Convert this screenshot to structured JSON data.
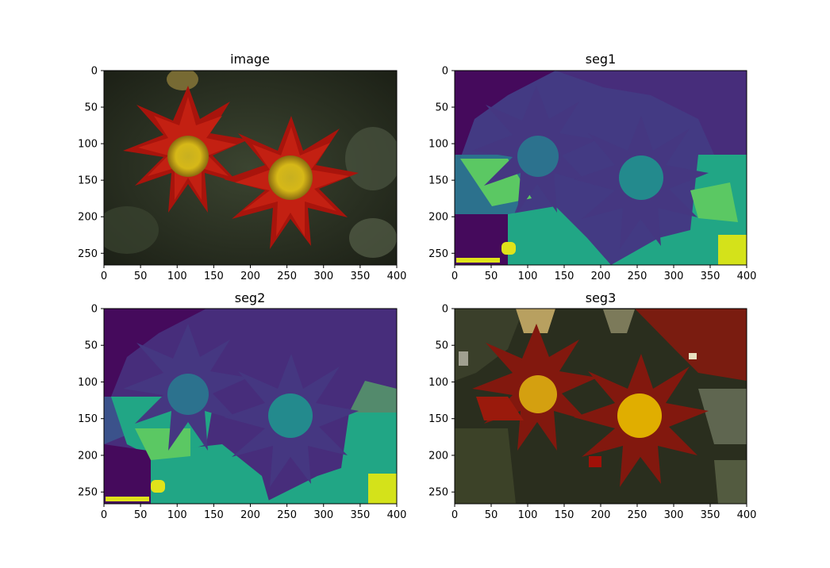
{
  "figure": {
    "panels": [
      {
        "id": "image",
        "title": "image",
        "x_ticks": [
          "0",
          "50",
          "100",
          "150",
          "200",
          "250",
          "300",
          "350",
          "400"
        ],
        "y_ticks": [
          "0",
          "50",
          "100",
          "150",
          "200",
          "250"
        ],
        "style": "photo"
      },
      {
        "id": "seg1",
        "title": "seg1",
        "x_ticks": [
          "0",
          "50",
          "100",
          "150",
          "200",
          "250",
          "300",
          "350",
          "400"
        ],
        "y_ticks": [
          "0",
          "50",
          "100",
          "150",
          "200",
          "250"
        ],
        "style": "viridis"
      },
      {
        "id": "seg2",
        "title": "seg2",
        "x_ticks": [
          "0",
          "50",
          "100",
          "150",
          "200",
          "250",
          "300",
          "350",
          "400"
        ],
        "y_ticks": [
          "0",
          "50",
          "100",
          "150",
          "200",
          "250"
        ],
        "style": "viridis"
      },
      {
        "id": "seg3",
        "title": "seg3",
        "x_ticks": [
          "0",
          "50",
          "100",
          "150",
          "200",
          "250",
          "300",
          "350",
          "400"
        ],
        "y_ticks": [
          "0",
          "50",
          "100",
          "150",
          "200",
          "250"
        ],
        "style": "mean-color"
      }
    ],
    "colors": {
      "viridis_dark": "#450a5c",
      "viridis_purple": "#433a83",
      "viridis_blue": "#2c728e",
      "viridis_teal": "#21a685",
      "viridis_green": "#5bc863",
      "viridis_yellow": "#d4e21a",
      "petal_red": "#b01a10",
      "center_yellow": "#e0b000",
      "foliage_dark": "#2a2e1e"
    }
  }
}
